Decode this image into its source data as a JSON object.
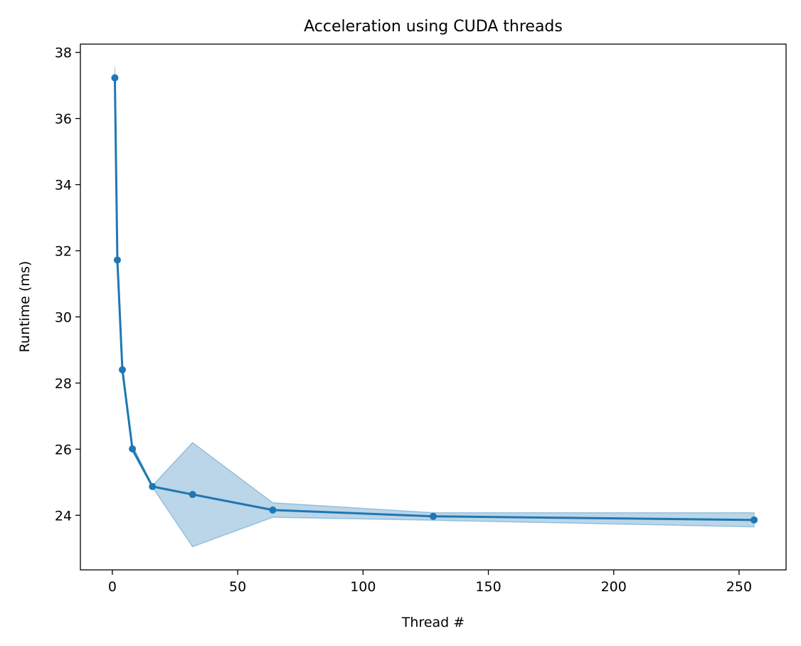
{
  "chart_data": {
    "type": "line",
    "title": "Acceleration using CUDA threads",
    "xlabel": "Thread #",
    "ylabel": "Runtime (ms)",
    "xlim": [
      -12.75,
      268.75
    ],
    "ylim": [
      22.35,
      38.25
    ],
    "xticks": [
      0,
      50,
      100,
      150,
      200,
      250
    ],
    "yticks": [
      24,
      26,
      28,
      30,
      32,
      34,
      36,
      38
    ],
    "grid": false,
    "legend": "none",
    "series": [
      {
        "x": [
          1,
          2,
          4,
          8,
          16,
          32,
          64,
          128,
          256
        ],
        "y": [
          37.23,
          31.72,
          28.4,
          26.01,
          24.87,
          24.63,
          24.16,
          23.97,
          23.86
        ],
        "lower": [
          36.9,
          31.6,
          28.25,
          25.92,
          24.85,
          23.05,
          23.94,
          23.85,
          23.65
        ],
        "upper": [
          37.55,
          31.85,
          28.55,
          26.12,
          24.9,
          26.2,
          24.38,
          24.08,
          24.08
        ]
      }
    ],
    "colors": {
      "line": "#1f77b4",
      "band": "#1f77b4"
    }
  }
}
